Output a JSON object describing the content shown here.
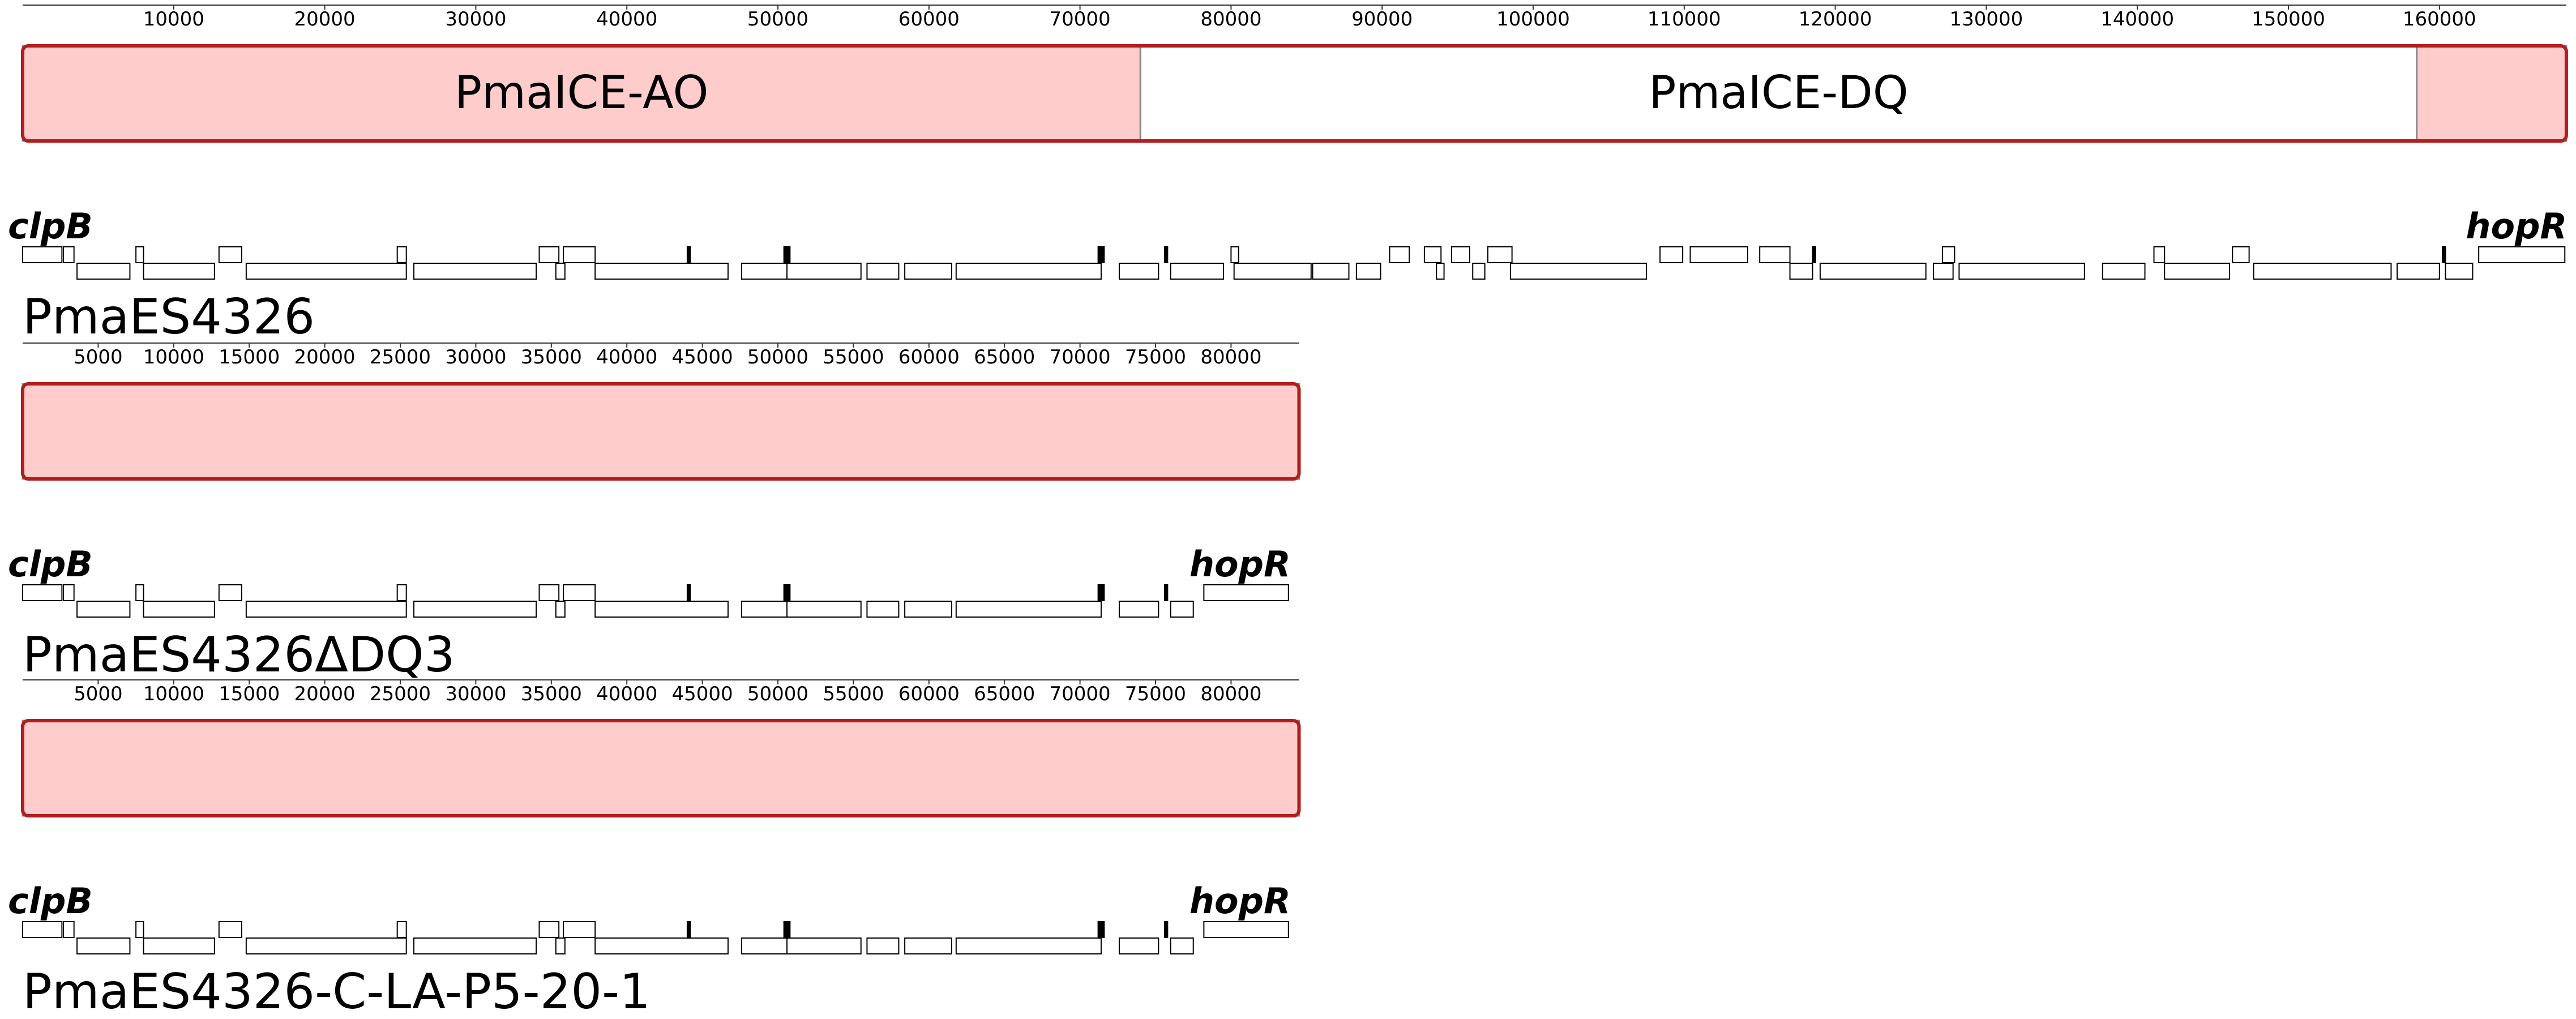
{
  "tracks": [
    {
      "name": "PmaES4326",
      "xlim": [
        0,
        168400
      ],
      "ticks": [
        10000,
        20000,
        30000,
        40000,
        50000,
        60000,
        70000,
        80000,
        90000,
        100000,
        110000,
        120000,
        130000,
        140000,
        150000,
        160000
      ],
      "blocks": [
        {
          "label": "PmaICE-AO",
          "start": 0,
          "end": 74000,
          "color": "#ffcccc"
        },
        {
          "label": "PmaICE-DQ",
          "start": 74000,
          "end": 158500,
          "color": "#ffffff"
        },
        {
          "start": 158500,
          "end": 168400,
          "color": "#ffcccc"
        }
      ],
      "gene_labels": [
        {
          "label": "clpB",
          "start": 0,
          "end": 2600
        },
        {
          "label": "hopR",
          "start": 162600,
          "end": 168300
        }
      ],
      "forward": [
        [
          0,
          2600
        ],
        [
          2700,
          3400
        ],
        [
          7500,
          8000
        ],
        [
          13000,
          14500
        ],
        [
          24800,
          25400
        ],
        [
          34200,
          35500
        ],
        [
          35800,
          37900
        ],
        [
          44000,
          44200
        ],
        [
          50400,
          50800
        ],
        [
          71200,
          71600
        ],
        [
          75600,
          75800
        ],
        [
          80000,
          80500
        ],
        [
          90500,
          91800
        ],
        [
          92800,
          93900
        ],
        [
          94600,
          95800
        ],
        [
          97000,
          98600
        ],
        [
          108400,
          109900
        ],
        [
          110400,
          114200
        ],
        [
          115000,
          117000
        ],
        [
          118500,
          118700
        ],
        [
          127100,
          127900
        ],
        [
          141100,
          141800
        ],
        [
          146300,
          147400
        ],
        [
          160200,
          160400
        ],
        [
          162600,
          168300
        ]
      ],
      "reverse": [
        [
          3600,
          7100
        ],
        [
          8000,
          12700
        ],
        [
          14800,
          25400
        ],
        [
          25900,
          34000
        ],
        [
          35300,
          35900
        ],
        [
          37900,
          46700
        ],
        [
          47600,
          50600
        ],
        [
          50600,
          55500
        ],
        [
          55900,
          58000
        ],
        [
          58400,
          61500
        ],
        [
          61800,
          71400
        ],
        [
          72600,
          75200
        ],
        [
          76000,
          79500
        ],
        [
          80200,
          85300
        ],
        [
          85400,
          87800
        ],
        [
          88300,
          89900
        ],
        [
          93600,
          94100
        ],
        [
          96000,
          96800
        ],
        [
          98500,
          107500
        ],
        [
          117000,
          118500
        ],
        [
          119000,
          126000
        ],
        [
          126500,
          127800
        ],
        [
          128200,
          136500
        ],
        [
          137700,
          140500
        ],
        [
          141800,
          146100
        ],
        [
          147700,
          156800
        ],
        [
          157200,
          160000
        ],
        [
          160400,
          162200
        ]
      ]
    },
    {
      "name": "PmaES4326ΔDQ3",
      "xlim": [
        0,
        84500
      ],
      "ticks": [
        5000,
        10000,
        15000,
        20000,
        25000,
        30000,
        35000,
        40000,
        45000,
        50000,
        55000,
        60000,
        65000,
        70000,
        75000,
        80000
      ],
      "blocks": [
        {
          "start": 0,
          "end": 84500,
          "color": "#ffcccc"
        }
      ],
      "gene_labels": [
        {
          "label": "clpB",
          "start": 0,
          "end": 2600
        },
        {
          "label": "hopR",
          "start": 78200,
          "end": 83800
        }
      ],
      "forward": [
        [
          0,
          2600
        ],
        [
          2700,
          3400
        ],
        [
          7500,
          8000
        ],
        [
          13000,
          14500
        ],
        [
          24800,
          25400
        ],
        [
          34200,
          35500
        ],
        [
          35800,
          37900
        ],
        [
          44000,
          44200
        ],
        [
          50400,
          50800
        ],
        [
          71200,
          71600
        ],
        [
          75600,
          75800
        ],
        [
          78200,
          83800
        ]
      ],
      "reverse": [
        [
          3600,
          7100
        ],
        [
          8000,
          12700
        ],
        [
          14800,
          25400
        ],
        [
          25900,
          34000
        ],
        [
          35300,
          35900
        ],
        [
          37900,
          46700
        ],
        [
          47600,
          50600
        ],
        [
          50600,
          55500
        ],
        [
          55900,
          58000
        ],
        [
          58400,
          61500
        ],
        [
          61800,
          71400
        ],
        [
          72600,
          75200
        ],
        [
          76000,
          77500
        ]
      ]
    },
    {
      "name": "PmaES4326-C-LA-P5-20-1",
      "xlim": [
        0,
        84500
      ],
      "ticks": [
        5000,
        10000,
        15000,
        20000,
        25000,
        30000,
        35000,
        40000,
        45000,
        50000,
        55000,
        60000,
        65000,
        70000,
        75000,
        80000
      ],
      "blocks": [
        {
          "start": 0,
          "end": 84500,
          "color": "#ffcccc"
        }
      ],
      "gene_labels": [
        {
          "label": "clpB",
          "start": 0,
          "end": 2600
        },
        {
          "label": "hopR",
          "start": 78200,
          "end": 83800
        }
      ],
      "forward": [
        [
          0,
          2600
        ],
        [
          2700,
          3400
        ],
        [
          7500,
          8000
        ],
        [
          13000,
          14500
        ],
        [
          24800,
          25400
        ],
        [
          34200,
          35500
        ],
        [
          35800,
          37900
        ],
        [
          44000,
          44200
        ],
        [
          50400,
          50800
        ],
        [
          71200,
          71600
        ],
        [
          75600,
          75800
        ],
        [
          78200,
          83800
        ]
      ],
      "reverse": [
        [
          3600,
          7100
        ],
        [
          8000,
          12700
        ],
        [
          14800,
          25400
        ],
        [
          25900,
          34000
        ],
        [
          35300,
          35900
        ],
        [
          37900,
          46700
        ],
        [
          47600,
          50600
        ],
        [
          50600,
          55500
        ],
        [
          55900,
          58000
        ],
        [
          58400,
          61500
        ],
        [
          61800,
          71400
        ],
        [
          72600,
          75200
        ],
        [
          76000,
          77500
        ]
      ]
    }
  ]
}
